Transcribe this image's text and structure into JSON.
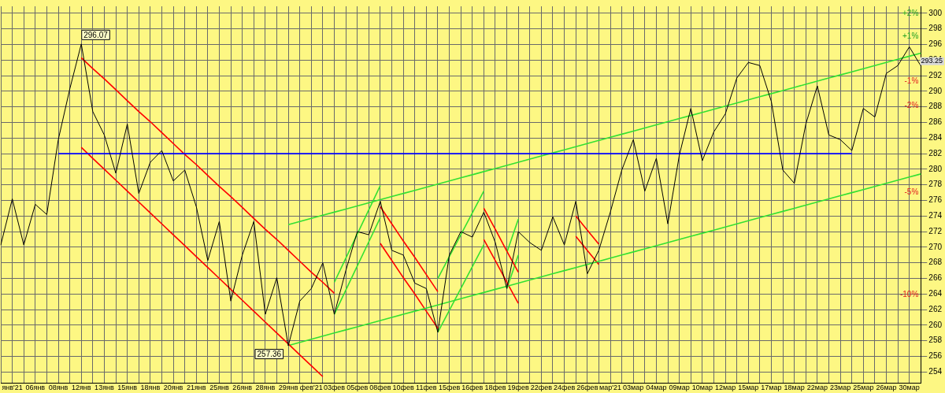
{
  "chart_data": {
    "type": "line",
    "ylim": [
      252.6,
      300.9
    ],
    "categories": [
      null,
      "янв'21",
      null,
      "06янв",
      null,
      "08янв",
      null,
      "12янв",
      null,
      "13янв",
      null,
      "15янв",
      null,
      "18янв",
      null,
      "20янв",
      null,
      "21янв",
      null,
      "25янв",
      null,
      "26янв",
      null,
      "28янв",
      null,
      "29янв",
      null,
      "фев'21",
      null,
      "03фев",
      null,
      "05фев",
      null,
      "08фев",
      null,
      "10фев",
      null,
      "11фев",
      null,
      "15фев",
      null,
      "16фев",
      null,
      "18фев",
      null,
      "19фев",
      null,
      "22фев",
      null,
      "24фев",
      null,
      "26фев",
      null,
      "мар'21",
      null,
      "03мар",
      null,
      "04мар",
      null,
      "09мар",
      null,
      "10мар",
      null,
      "12мар",
      null,
      "15мар",
      null,
      "17мар",
      null,
      "18мар",
      null,
      "22мар",
      null,
      "23мар",
      null,
      "25мар",
      null,
      "26мар",
      null,
      "30мар",
      null
    ],
    "yticks": [
      254,
      256,
      258,
      260,
      262,
      264,
      266,
      268,
      270,
      272,
      274,
      276,
      278,
      280,
      282,
      284,
      286,
      288,
      290,
      292,
      294,
      296,
      298,
      300
    ],
    "grid": true,
    "legend": false,
    "marker": "none",
    "line_style": "solid",
    "series": [
      {
        "color": "#000000",
        "values": [
          270.3,
          276.2,
          270.3,
          275.5,
          274.2,
          283.8,
          290.3,
          296.07,
          287.4,
          284.4,
          279.5,
          285.8,
          276.9,
          280.9,
          282.4,
          278.5,
          279.9,
          275.2,
          268.3,
          273.3,
          263.1,
          269.0,
          273.3,
          261.4,
          266.1,
          257.36,
          263.1,
          264.7,
          268.0,
          261.4,
          267.0,
          272.0,
          271.6,
          275.9,
          269.6,
          269.0,
          265.4,
          264.7,
          259.1,
          269.0,
          272.0,
          271.3,
          274.5,
          270.6,
          264.7,
          272.0,
          270.6,
          269.6,
          273.9,
          270.3,
          275.9,
          266.6,
          269.6,
          274.5,
          279.9,
          283.8,
          277.2,
          281.4,
          273.0,
          281.8,
          287.8,
          281.1,
          284.8,
          287.1,
          291.7,
          293.7,
          293.3,
          288.7,
          279.9,
          278.2,
          285.8,
          290.7,
          284.4,
          283.8,
          282.4,
          287.8,
          286.7,
          292.3,
          293.3,
          295.7,
          293.25
        ]
      },
      {
        "color": "#0000ff",
        "values": [
          null,
          null,
          null,
          null,
          null,
          282,
          282,
          282,
          282,
          282,
          282,
          282,
          282,
          282,
          282,
          282,
          282,
          282,
          282,
          282,
          282,
          282,
          282,
          282,
          282,
          282,
          282,
          282,
          282,
          282,
          282,
          282,
          282,
          282,
          282,
          282,
          282,
          282,
          282,
          282,
          282,
          282,
          282,
          282,
          282,
          282,
          282,
          282,
          282,
          282,
          282,
          282,
          282,
          282,
          282,
          282,
          282,
          282,
          282,
          282,
          282,
          282,
          282,
          282,
          282,
          282,
          282,
          282,
          282,
          282,
          282,
          282,
          282,
          282,
          282,
          null,
          null,
          null,
          null,
          null,
          null
        ]
      },
      {
        "color": "#ff0000",
        "values": [
          null,
          null,
          null,
          null,
          null,
          null,
          null,
          294.3,
          292.9,
          291.6,
          290.2,
          288.8,
          287.4,
          286.1,
          284.7,
          283.3,
          281.9,
          280.6,
          279.2,
          277.8,
          276.5,
          275.1,
          273.7,
          272.3,
          271.0,
          269.6,
          268.2,
          266.8,
          265.5,
          264.1,
          null,
          null,
          null,
          null,
          null,
          null,
          null,
          null,
          null,
          null,
          null,
          null,
          null,
          null,
          null,
          null,
          null,
          null,
          null,
          null,
          null,
          null,
          null,
          null,
          null,
          null,
          null,
          null,
          null,
          null,
          null,
          null,
          null,
          null,
          null,
          null,
          null,
          null,
          null,
          null,
          null,
          null,
          null,
          null,
          null,
          null,
          null,
          null,
          null,
          null,
          null
        ]
      },
      {
        "color": "#ff0000",
        "values": [
          null,
          null,
          null,
          null,
          null,
          null,
          null,
          282.8,
          281.4,
          280.0,
          278.6,
          277.2,
          275.8,
          274.4,
          273.0,
          271.6,
          270.2,
          268.8,
          267.4,
          266.0,
          264.6,
          263.2,
          261.8,
          260.4,
          259.0,
          257.6,
          256.2,
          254.8,
          253.4,
          null,
          null,
          null,
          null,
          null,
          null,
          null,
          null,
          null,
          null,
          null,
          null,
          null,
          null,
          null,
          null,
          null,
          null,
          null,
          null,
          null,
          null,
          null,
          null,
          null,
          null,
          null,
          null,
          null,
          null,
          null,
          null,
          null,
          null,
          null,
          null,
          null,
          null,
          null,
          null,
          null,
          null,
          null,
          null,
          null,
          null,
          null,
          null,
          null,
          null,
          null,
          null
        ]
      },
      {
        "color": "#33e033",
        "values": [
          null,
          null,
          null,
          null,
          null,
          null,
          null,
          null,
          null,
          null,
          null,
          null,
          null,
          null,
          null,
          null,
          null,
          null,
          null,
          null,
          null,
          null,
          null,
          null,
          null,
          272.9,
          273.3,
          273.7,
          274.1,
          274.5,
          274.9,
          275.3,
          275.7,
          276.1,
          276.5,
          276.9,
          277.3,
          277.7,
          278.1,
          278.5,
          278.9,
          279.3,
          279.7,
          280.1,
          280.5,
          280.9,
          281.3,
          281.7,
          282.1,
          282.5,
          282.9,
          283.3,
          283.7,
          284.1,
          284.5,
          284.9,
          285.3,
          285.7,
          286.1,
          286.5,
          286.9,
          287.3,
          287.7,
          288.1,
          288.5,
          288.9,
          289.3,
          289.7,
          290.1,
          290.5,
          290.9,
          291.3,
          291.7,
          292.1,
          292.5,
          292.9,
          293.3,
          293.7,
          294.1,
          294.5,
          294.9
        ]
      },
      {
        "color": "#33e033",
        "values": [
          null,
          null,
          null,
          null,
          null,
          null,
          null,
          null,
          null,
          null,
          null,
          null,
          null,
          null,
          null,
          null,
          null,
          null,
          null,
          null,
          null,
          null,
          null,
          null,
          null,
          257.4,
          257.8,
          258.2,
          258.6,
          259.0,
          259.4,
          259.8,
          260.2,
          260.6,
          261.0,
          261.4,
          261.8,
          262.2,
          262.6,
          263.0,
          263.4,
          263.8,
          264.2,
          264.6,
          265.0,
          265.4,
          265.8,
          266.2,
          266.6,
          267.0,
          267.4,
          267.8,
          268.2,
          268.6,
          269.0,
          269.4,
          269.8,
          270.2,
          270.6,
          271.0,
          271.4,
          271.8,
          272.2,
          272.6,
          273.0,
          273.4,
          273.8,
          274.2,
          274.6,
          275.0,
          275.4,
          275.8,
          276.2,
          276.6,
          277.0,
          277.4,
          277.8,
          278.2,
          278.6,
          279.0,
          279.4
        ]
      },
      {
        "color": "#33e033",
        "values": [
          null,
          null,
          null,
          null,
          null,
          null,
          null,
          null,
          null,
          null,
          null,
          null,
          null,
          null,
          null,
          null,
          null,
          null,
          null,
          null,
          null,
          null,
          null,
          null,
          null,
          null,
          null,
          null,
          null,
          261.4,
          264.5,
          267.6,
          270.7,
          273.8,
          null,
          null,
          null,
          null,
          null,
          null,
          null,
          null,
          null,
          null,
          null,
          null,
          null,
          null,
          null,
          null,
          null,
          null,
          null,
          null,
          null,
          null,
          null,
          null,
          null,
          null,
          null,
          null,
          null,
          null,
          null,
          null,
          null,
          null,
          null,
          null,
          null,
          null,
          null,
          null,
          null,
          null,
          null,
          null,
          null,
          null,
          null
        ]
      },
      {
        "color": "#33e033",
        "values": [
          null,
          null,
          null,
          null,
          null,
          null,
          null,
          null,
          null,
          null,
          null,
          null,
          null,
          null,
          null,
          null,
          null,
          null,
          null,
          null,
          null,
          null,
          null,
          null,
          null,
          null,
          null,
          null,
          null,
          265.5,
          268.6,
          271.7,
          274.8,
          277.9,
          null,
          null,
          null,
          null,
          null,
          null,
          null,
          null,
          null,
          null,
          null,
          null,
          null,
          null,
          null,
          null,
          null,
          null,
          null,
          null,
          null,
          null,
          null,
          null,
          null,
          null,
          null,
          null,
          null,
          null,
          null,
          null,
          null,
          null,
          null,
          null,
          null,
          null,
          null,
          null,
          null,
          null,
          null,
          null,
          null,
          null,
          null
        ]
      },
      {
        "color": "#ff0000",
        "values": [
          null,
          null,
          null,
          null,
          null,
          null,
          null,
          null,
          null,
          null,
          null,
          null,
          null,
          null,
          null,
          null,
          null,
          null,
          null,
          null,
          null,
          null,
          null,
          null,
          null,
          null,
          null,
          null,
          null,
          null,
          null,
          null,
          null,
          275.2,
          273.0,
          270.8,
          268.7,
          266.5,
          264.3,
          null,
          null,
          null,
          null,
          null,
          null,
          null,
          null,
          null,
          null,
          null,
          null,
          null,
          null,
          null,
          null,
          null,
          null,
          null,
          null,
          null,
          null,
          null,
          null,
          null,
          null,
          null,
          null,
          null,
          null,
          null,
          null,
          null,
          null,
          null,
          null,
          null,
          null,
          null,
          null,
          null,
          null
        ]
      },
      {
        "color": "#ff0000",
        "values": [
          null,
          null,
          null,
          null,
          null,
          null,
          null,
          null,
          null,
          null,
          null,
          null,
          null,
          null,
          null,
          null,
          null,
          null,
          null,
          null,
          null,
          null,
          null,
          null,
          null,
          null,
          null,
          null,
          null,
          null,
          null,
          null,
          null,
          270.5,
          268.3,
          266.1,
          264.0,
          261.8,
          259.6,
          null,
          null,
          null,
          null,
          null,
          null,
          null,
          null,
          null,
          null,
          null,
          null,
          null,
          null,
          null,
          null,
          null,
          null,
          null,
          null,
          null,
          null,
          null,
          null,
          null,
          null,
          null,
          null,
          null,
          null,
          null,
          null,
          null,
          null,
          null,
          null,
          null,
          null,
          null,
          null,
          null,
          null
        ]
      },
      {
        "color": "#33e033",
        "values": [
          null,
          null,
          null,
          null,
          null,
          null,
          null,
          null,
          null,
          null,
          null,
          null,
          null,
          null,
          null,
          null,
          null,
          null,
          null,
          null,
          null,
          null,
          null,
          null,
          null,
          null,
          null,
          null,
          null,
          null,
          null,
          null,
          null,
          null,
          null,
          null,
          null,
          null,
          259.1,
          261.9,
          264.7,
          267.5,
          270.3,
          null,
          null,
          null,
          null,
          null,
          null,
          null,
          null,
          null,
          null,
          null,
          null,
          null,
          null,
          null,
          null,
          null,
          null,
          null,
          null,
          null,
          null,
          null,
          null,
          null,
          null,
          null,
          null,
          null,
          null,
          null,
          null,
          null,
          null,
          null,
          null,
          null,
          null
        ]
      },
      {
        "color": "#33e033",
        "values": [
          null,
          null,
          null,
          null,
          null,
          null,
          null,
          null,
          null,
          null,
          null,
          null,
          null,
          null,
          null,
          null,
          null,
          null,
          null,
          null,
          null,
          null,
          null,
          null,
          null,
          null,
          null,
          null,
          null,
          null,
          null,
          null,
          null,
          null,
          null,
          null,
          null,
          null,
          266.0,
          268.8,
          271.6,
          274.4,
          277.2,
          null,
          null,
          null,
          null,
          null,
          null,
          null,
          null,
          null,
          null,
          null,
          null,
          null,
          null,
          null,
          null,
          null,
          null,
          null,
          null,
          null,
          null,
          null,
          null,
          null,
          null,
          null,
          null,
          null,
          null,
          null,
          null,
          null,
          null,
          null,
          null,
          null,
          null
        ]
      },
      {
        "color": "#ff0000",
        "values": [
          null,
          null,
          null,
          null,
          null,
          null,
          null,
          null,
          null,
          null,
          null,
          null,
          null,
          null,
          null,
          null,
          null,
          null,
          null,
          null,
          null,
          null,
          null,
          null,
          null,
          null,
          null,
          null,
          null,
          null,
          null,
          null,
          null,
          null,
          null,
          null,
          null,
          null,
          null,
          null,
          null,
          null,
          275.0,
          272.3,
          269.5,
          266.8,
          null,
          null,
          null,
          null,
          null,
          null,
          null,
          null,
          null,
          null,
          null,
          null,
          null,
          null,
          null,
          null,
          null,
          null,
          null,
          null,
          null,
          null,
          null,
          null,
          null,
          null,
          null,
          null,
          null,
          null,
          null,
          null,
          null,
          null,
          null
        ]
      },
      {
        "color": "#ff0000",
        "values": [
          null,
          null,
          null,
          null,
          null,
          null,
          null,
          null,
          null,
          null,
          null,
          null,
          null,
          null,
          null,
          null,
          null,
          null,
          null,
          null,
          null,
          null,
          null,
          null,
          null,
          null,
          null,
          null,
          null,
          null,
          null,
          null,
          null,
          null,
          null,
          null,
          null,
          null,
          null,
          null,
          null,
          null,
          271.0,
          268.3,
          265.5,
          262.8,
          null,
          null,
          null,
          null,
          null,
          null,
          null,
          null,
          null,
          null,
          null,
          null,
          null,
          null,
          null,
          null,
          null,
          null,
          null,
          null,
          null,
          null,
          null,
          null,
          null,
          null,
          null,
          null,
          null,
          null,
          null,
          null,
          null,
          null,
          null
        ]
      },
      {
        "color": "#33e033",
        "values": [
          null,
          null,
          null,
          null,
          null,
          null,
          null,
          null,
          null,
          null,
          null,
          null,
          null,
          null,
          null,
          null,
          null,
          null,
          null,
          null,
          null,
          null,
          null,
          null,
          null,
          null,
          null,
          null,
          null,
          null,
          null,
          null,
          null,
          null,
          null,
          null,
          null,
          null,
          null,
          null,
          null,
          null,
          null,
          null,
          264.7,
          269.0,
          null,
          null,
          null,
          null,
          null,
          null,
          null,
          null,
          null,
          null,
          null,
          null,
          null,
          null,
          null,
          null,
          null,
          null,
          null,
          null,
          null,
          null,
          null,
          null,
          null,
          null,
          null,
          null,
          null,
          null,
          null,
          null,
          null,
          null,
          null
        ]
      },
      {
        "color": "#33e033",
        "values": [
          null,
          null,
          null,
          null,
          null,
          null,
          null,
          null,
          null,
          null,
          null,
          null,
          null,
          null,
          null,
          null,
          null,
          null,
          null,
          null,
          null,
          null,
          null,
          null,
          null,
          null,
          null,
          null,
          null,
          null,
          null,
          null,
          null,
          null,
          null,
          null,
          null,
          null,
          null,
          null,
          null,
          null,
          null,
          null,
          269.3,
          273.6,
          null,
          null,
          null,
          null,
          null,
          null,
          null,
          null,
          null,
          null,
          null,
          null,
          null,
          null,
          null,
          null,
          null,
          null,
          null,
          null,
          null,
          null,
          null,
          null,
          null,
          null,
          null,
          null,
          null,
          null,
          null,
          null,
          null,
          null,
          null
        ]
      },
      {
        "color": "#ff0000",
        "values": [
          null,
          null,
          null,
          null,
          null,
          null,
          null,
          null,
          null,
          null,
          null,
          null,
          null,
          null,
          null,
          null,
          null,
          null,
          null,
          null,
          null,
          null,
          null,
          null,
          null,
          null,
          null,
          null,
          null,
          null,
          null,
          null,
          null,
          null,
          null,
          null,
          null,
          null,
          null,
          null,
          null,
          null,
          null,
          null,
          null,
          null,
          null,
          null,
          null,
          null,
          274.0,
          272.2,
          270.4,
          null,
          null,
          null,
          null,
          null,
          null,
          null,
          null,
          null,
          null,
          null,
          null,
          null,
          null,
          null,
          null,
          null,
          null,
          null,
          null,
          null,
          null,
          null,
          null,
          null,
          null,
          null,
          null
        ]
      },
      {
        "color": "#ff0000",
        "values": [
          null,
          null,
          null,
          null,
          null,
          null,
          null,
          null,
          null,
          null,
          null,
          null,
          null,
          null,
          null,
          null,
          null,
          null,
          null,
          null,
          null,
          null,
          null,
          null,
          null,
          null,
          null,
          null,
          null,
          null,
          null,
          null,
          null,
          null,
          null,
          null,
          null,
          null,
          null,
          null,
          null,
          null,
          null,
          null,
          null,
          null,
          null,
          null,
          null,
          null,
          271.4,
          269.6,
          267.8,
          null,
          null,
          null,
          null,
          null,
          null,
          null,
          null,
          null,
          null,
          null,
          null,
          null,
          null,
          null,
          null,
          null,
          null,
          null,
          null,
          null,
          null,
          null,
          null,
          null,
          null,
          null,
          null
        ]
      }
    ],
    "annotations": [
      {
        "text": "296.07",
        "x": "12янв",
        "y": 296.07
      },
      {
        "text": "257.36",
        "x": "29янв",
        "y": 257.36
      },
      "293.25",
      "+2%",
      "+1%",
      "-1%",
      "-2%",
      "-5%",
      "-10%"
    ]
  }
}
